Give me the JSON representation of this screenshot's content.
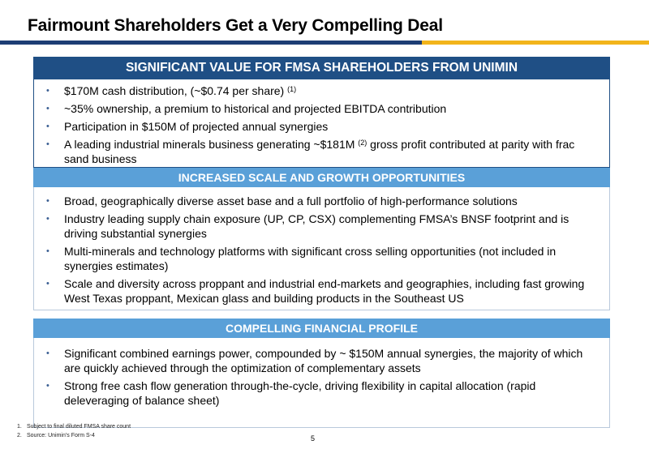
{
  "title": "Fairmount Shareholders Get a Very Compelling Deal",
  "panels": [
    {
      "heading": "SIGNIFICANT VALUE FOR FMSA SHAREHOLDERS FROM UNIMIN",
      "bullets": [
        {
          "pre": "$170M cash distribution, (~$0.74 per share) ",
          "sup": "(1)",
          "post": ""
        },
        {
          "pre": "~35% ownership, a premium to historical and projected EBITDA contribution",
          "sup": "",
          "post": ""
        },
        {
          "pre": "Participation in $150M of projected annual synergies",
          "sup": "",
          "post": ""
        },
        {
          "pre": "A leading industrial minerals business generating ~$181M ",
          "sup": "(2)",
          "post": " gross profit contributed at parity with frac sand business"
        }
      ]
    },
    {
      "heading": "INCREASED SCALE AND GROWTH OPPORTUNITIES",
      "bullets": [
        {
          "pre": "Broad, geographically diverse asset base and a full portfolio of high-performance solutions",
          "sup": "",
          "post": ""
        },
        {
          "pre": "Industry leading supply chain exposure (UP, CP, CSX) complementing FMSA’s BNSF footprint and is driving substantial synergies",
          "sup": "",
          "post": ""
        },
        {
          "pre": "Multi-minerals and technology platforms with significant cross selling opportunities (not included in synergies estimates)",
          "sup": "",
          "post": ""
        },
        {
          "pre": "Scale and diversity across proppant and industrial end-markets and geographies, including fast growing West Texas proppant, Mexican glass and building products in the Southeast US",
          "sup": "",
          "post": ""
        }
      ]
    },
    {
      "heading": "COMPELLING FINANCIAL PROFILE",
      "bullets": [
        {
          "pre": "Significant combined earnings power, compounded by ~ $150M annual synergies, the majority of which are quickly achieved through the optimization of complementary assets",
          "sup": "",
          "post": ""
        },
        {
          "pre": "Strong free cash flow generation through-the-cycle, driving flexibility in capital allocation (rapid deleveraging of balance sheet)",
          "sup": "",
          "post": ""
        }
      ]
    }
  ],
  "bullet_glyph": "•",
  "footnotes": [
    {
      "num": "1.",
      "text": "Subject to final diluted FMSA share count"
    },
    {
      "num": "2.",
      "text": "Source: Unimin’s Form S-4"
    }
  ],
  "page_number": "5",
  "colors": {
    "navy": "#1f4f85",
    "light_blue": "#5aa0d8",
    "gold": "#f2b41b"
  }
}
